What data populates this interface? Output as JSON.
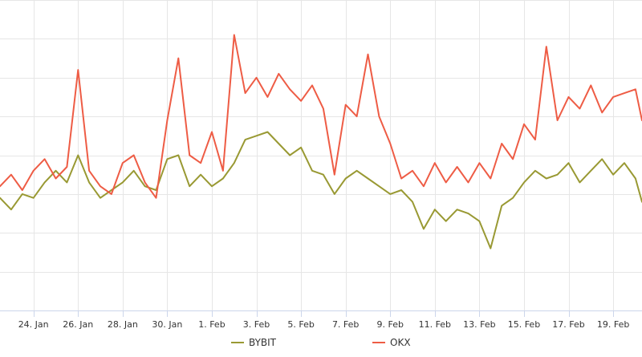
{
  "chart_data": {
    "type": "line",
    "title": "",
    "xlabel": "",
    "ylabel": "",
    "x_tick_labels": [
      "24. Jan",
      "26. Jan",
      "28. Jan",
      "30. Jan",
      "1. Feb",
      "3. Feb",
      "5. Feb",
      "7. Feb",
      "9. Feb",
      "11. Feb",
      "13. Feb",
      "15. Feb",
      "17. Feb",
      "19. Feb"
    ],
    "x_range": [
      "2024-01-22T12:00",
      "2024-02-20T07:00"
    ],
    "y_range": [
      0,
      8
    ],
    "y_tick_values": [
      1,
      2,
      3,
      4,
      5,
      6,
      7,
      8
    ],
    "y_tick_labels_visible": false,
    "grid": true,
    "legend_position": "bottom-center",
    "series": [
      {
        "name": "BYBIT",
        "color": "#999933",
        "points": [
          [
            "2024-01-22T12:00",
            2.9
          ],
          [
            "2024-01-23T00:00",
            2.6
          ],
          [
            "2024-01-23T12:00",
            3.0
          ],
          [
            "2024-01-24T00:00",
            2.9
          ],
          [
            "2024-01-24T12:00",
            3.3
          ],
          [
            "2024-01-25T00:00",
            3.6
          ],
          [
            "2024-01-25T12:00",
            3.3
          ],
          [
            "2024-01-26T00:00",
            4.0
          ],
          [
            "2024-01-26T12:00",
            3.3
          ],
          [
            "2024-01-27T00:00",
            2.9
          ],
          [
            "2024-01-27T12:00",
            3.1
          ],
          [
            "2024-01-28T00:00",
            3.3
          ],
          [
            "2024-01-28T12:00",
            3.6
          ],
          [
            "2024-01-29T00:00",
            3.2
          ],
          [
            "2024-01-29T12:00",
            3.1
          ],
          [
            "2024-01-30T00:00",
            3.9
          ],
          [
            "2024-01-30T12:00",
            4.0
          ],
          [
            "2024-01-31T00:00",
            3.2
          ],
          [
            "2024-01-31T12:00",
            3.5
          ],
          [
            "2024-02-01T00:00",
            3.2
          ],
          [
            "2024-02-01T12:00",
            3.4
          ],
          [
            "2024-02-02T00:00",
            3.8
          ],
          [
            "2024-02-02T12:00",
            4.4
          ],
          [
            "2024-02-03T00:00",
            4.5
          ],
          [
            "2024-02-03T12:00",
            4.6
          ],
          [
            "2024-02-04T00:00",
            4.3
          ],
          [
            "2024-02-04T12:00",
            4.0
          ],
          [
            "2024-02-05T00:00",
            4.2
          ],
          [
            "2024-02-05T12:00",
            3.6
          ],
          [
            "2024-02-06T00:00",
            3.5
          ],
          [
            "2024-02-06T12:00",
            3.0
          ],
          [
            "2024-02-07T00:00",
            3.4
          ],
          [
            "2024-02-07T12:00",
            3.6
          ],
          [
            "2024-02-08T00:00",
            3.4
          ],
          [
            "2024-02-08T12:00",
            3.2
          ],
          [
            "2024-02-09T00:00",
            3.0
          ],
          [
            "2024-02-09T12:00",
            3.1
          ],
          [
            "2024-02-10T00:00",
            2.8
          ],
          [
            "2024-02-10T12:00",
            2.1
          ],
          [
            "2024-02-11T00:00",
            2.6
          ],
          [
            "2024-02-11T12:00",
            2.3
          ],
          [
            "2024-02-12T00:00",
            2.6
          ],
          [
            "2024-02-12T12:00",
            2.5
          ],
          [
            "2024-02-13T00:00",
            2.3
          ],
          [
            "2024-02-13T12:00",
            1.6
          ],
          [
            "2024-02-14T00:00",
            2.7
          ],
          [
            "2024-02-14T12:00",
            2.9
          ],
          [
            "2024-02-15T00:00",
            3.3
          ],
          [
            "2024-02-15T12:00",
            3.6
          ],
          [
            "2024-02-16T00:00",
            3.4
          ],
          [
            "2024-02-16T12:00",
            3.5
          ],
          [
            "2024-02-17T00:00",
            3.8
          ],
          [
            "2024-02-17T12:00",
            3.3
          ],
          [
            "2024-02-18T00:00",
            3.6
          ],
          [
            "2024-02-18T12:00",
            3.9
          ],
          [
            "2024-02-19T00:00",
            3.5
          ],
          [
            "2024-02-19T12:00",
            3.8
          ],
          [
            "2024-02-20T00:00",
            3.4
          ],
          [
            "2024-02-20T07:00",
            2.8
          ]
        ]
      },
      {
        "name": "OKX",
        "color": "#ee5c45",
        "points": [
          [
            "2024-01-22T12:00",
            3.2
          ],
          [
            "2024-01-23T00:00",
            3.5
          ],
          [
            "2024-01-23T12:00",
            3.1
          ],
          [
            "2024-01-24T00:00",
            3.6
          ],
          [
            "2024-01-24T12:00",
            3.9
          ],
          [
            "2024-01-25T00:00",
            3.4
          ],
          [
            "2024-01-25T12:00",
            3.7
          ],
          [
            "2024-01-26T00:00",
            6.2
          ],
          [
            "2024-01-26T12:00",
            3.6
          ],
          [
            "2024-01-27T00:00",
            3.2
          ],
          [
            "2024-01-27T12:00",
            3.0
          ],
          [
            "2024-01-28T00:00",
            3.8
          ],
          [
            "2024-01-28T12:00",
            4.0
          ],
          [
            "2024-01-29T00:00",
            3.3
          ],
          [
            "2024-01-29T12:00",
            2.9
          ],
          [
            "2024-01-30T00:00",
            4.9
          ],
          [
            "2024-01-30T12:00",
            6.5
          ],
          [
            "2024-01-31T00:00",
            4.0
          ],
          [
            "2024-01-31T12:00",
            3.8
          ],
          [
            "2024-02-01T00:00",
            4.6
          ],
          [
            "2024-02-01T12:00",
            3.6
          ],
          [
            "2024-02-02T00:00",
            7.1
          ],
          [
            "2024-02-02T12:00",
            5.6
          ],
          [
            "2024-02-03T00:00",
            6.0
          ],
          [
            "2024-02-03T12:00",
            5.5
          ],
          [
            "2024-02-04T00:00",
            6.1
          ],
          [
            "2024-02-04T12:00",
            5.7
          ],
          [
            "2024-02-05T00:00",
            5.4
          ],
          [
            "2024-02-05T12:00",
            5.8
          ],
          [
            "2024-02-06T00:00",
            5.2
          ],
          [
            "2024-02-06T12:00",
            3.5
          ],
          [
            "2024-02-07T00:00",
            5.3
          ],
          [
            "2024-02-07T12:00",
            5.0
          ],
          [
            "2024-02-08T00:00",
            6.6
          ],
          [
            "2024-02-08T12:00",
            5.0
          ],
          [
            "2024-02-09T00:00",
            4.3
          ],
          [
            "2024-02-09T12:00",
            3.4
          ],
          [
            "2024-02-10T00:00",
            3.6
          ],
          [
            "2024-02-10T12:00",
            3.2
          ],
          [
            "2024-02-11T00:00",
            3.8
          ],
          [
            "2024-02-11T12:00",
            3.3
          ],
          [
            "2024-02-12T00:00",
            3.7
          ],
          [
            "2024-02-12T12:00",
            3.3
          ],
          [
            "2024-02-13T00:00",
            3.8
          ],
          [
            "2024-02-13T12:00",
            3.4
          ],
          [
            "2024-02-14T00:00",
            4.3
          ],
          [
            "2024-02-14T12:00",
            3.9
          ],
          [
            "2024-02-15T00:00",
            4.8
          ],
          [
            "2024-02-15T12:00",
            4.4
          ],
          [
            "2024-02-16T00:00",
            6.8
          ],
          [
            "2024-02-16T12:00",
            4.9
          ],
          [
            "2024-02-17T00:00",
            5.5
          ],
          [
            "2024-02-17T12:00",
            5.2
          ],
          [
            "2024-02-18T00:00",
            5.8
          ],
          [
            "2024-02-18T12:00",
            5.1
          ],
          [
            "2024-02-19T00:00",
            5.5
          ],
          [
            "2024-02-19T12:00",
            5.6
          ],
          [
            "2024-02-20T00:00",
            5.7
          ],
          [
            "2024-02-20T07:00",
            4.9
          ]
        ]
      }
    ]
  }
}
